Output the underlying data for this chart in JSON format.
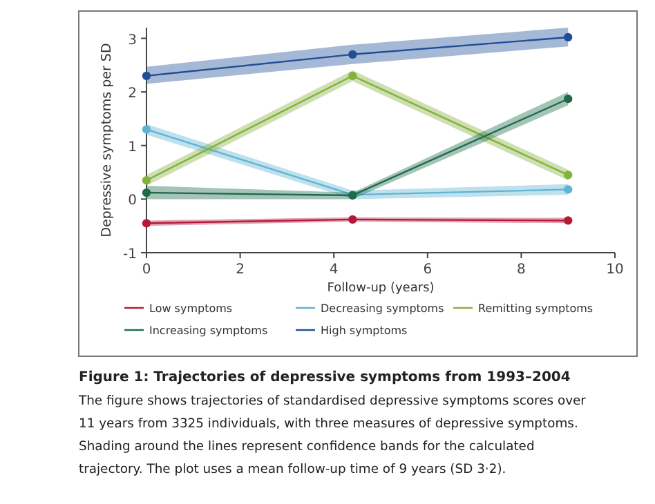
{
  "chart_data": {
    "type": "line",
    "title": "Figure 1: Trajectories of depressive symptoms from 1993–2004",
    "xlabel": "Follow-up (years)",
    "ylabel": "Depressive symptoms per SD",
    "x": [
      0,
      4.4,
      9
    ],
    "xlim": [
      0,
      10
    ],
    "xticks": [
      0,
      2,
      4,
      6,
      8,
      10
    ],
    "ylim": [
      -1,
      3.2
    ],
    "yticks": [
      -1,
      0,
      1,
      2,
      3
    ],
    "marker": "circle",
    "line_style": "solid",
    "grid": false,
    "legend": "bottom",
    "series": [
      {
        "name": "Low symptoms",
        "color": "#b5193a",
        "values": [
          -0.45,
          -0.38,
          -0.4
        ],
        "lower": [
          -0.5,
          -0.42,
          -0.45
        ],
        "upper": [
          -0.4,
          -0.34,
          -0.35
        ]
      },
      {
        "name": "Decreasing symptoms",
        "color": "#5fb3d3",
        "values": [
          1.3,
          0.08,
          0.18
        ],
        "lower": [
          1.2,
          0.0,
          0.08
        ],
        "upper": [
          1.4,
          0.16,
          0.28
        ]
      },
      {
        "name": "Remitting symptoms",
        "color": "#84b03c",
        "values": [
          0.35,
          2.3,
          0.45
        ],
        "lower": [
          0.25,
          2.2,
          0.35
        ],
        "upper": [
          0.45,
          2.4,
          0.55
        ]
      },
      {
        "name": "Increasing symptoms",
        "color": "#1d6b4a",
        "values": [
          0.12,
          0.07,
          1.87
        ],
        "lower": [
          0.0,
          0.0,
          1.75
        ],
        "upper": [
          0.25,
          0.12,
          2.0
        ]
      },
      {
        "name": "High symptoms",
        "color": "#1f4e96",
        "values": [
          2.3,
          2.7,
          3.02
        ],
        "lower": [
          2.15,
          2.52,
          2.85
        ],
        "upper": [
          2.47,
          2.88,
          3.2
        ]
      }
    ],
    "annotations": [
      "The figure shows trajectories of standardised depressive symptoms scores over 11 years from 3325 individuals, with three measures of depressive symptoms. Shading around the lines represent confidence bands for the calculated trajectory. The plot uses a mean follow-up time of 9 years (SD 3·2)."
    ]
  }
}
